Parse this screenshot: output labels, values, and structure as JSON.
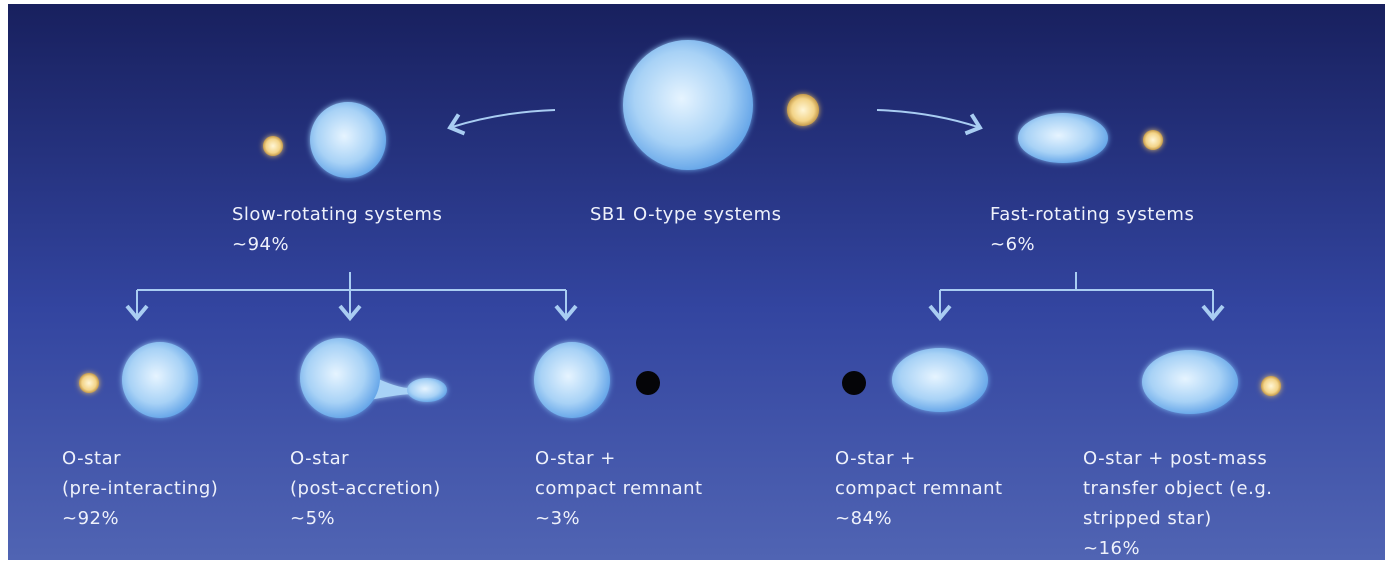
{
  "root": {
    "label": "SB1 O-type systems"
  },
  "branches": [
    {
      "label": "Slow-rotating systems",
      "share": "~94%",
      "outcomes": [
        {
          "lines": [
            "O-star",
            "(pre-interacting)"
          ],
          "share": "~92%"
        },
        {
          "lines": [
            "O-star",
            "(post-accretion)"
          ],
          "share": "~5%"
        },
        {
          "lines": [
            "O-star +",
            "compact remnant"
          ],
          "share": "~3%"
        }
      ]
    },
    {
      "label": "Fast-rotating systems",
      "share": "~6%",
      "outcomes": [
        {
          "lines": [
            "O-star +",
            "compact remnant"
          ],
          "share": "~84%"
        },
        {
          "lines": [
            "O-star + post-mass",
            "transfer object (e.g.",
            "stripped star)"
          ],
          "share": "~16%"
        }
      ]
    }
  ]
}
